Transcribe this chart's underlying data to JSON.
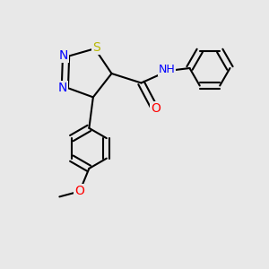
{
  "bg_color": "#e8e8e8",
  "bond_color": "#000000",
  "bond_lw": 1.5,
  "atom_colors": {
    "N": "#0000ff",
    "S": "#b8b800",
    "O": "#ff0000",
    "H": "#2a8fa0",
    "C": "#000000"
  },
  "font_size": 9,
  "font_size_small": 7.5
}
